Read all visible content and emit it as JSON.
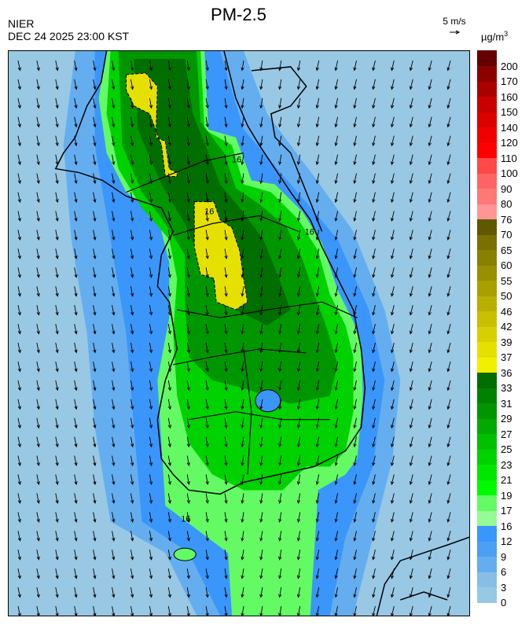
{
  "header": {
    "title": "PM-2.5",
    "agency": "NIER",
    "datetime": "DEC 24 2025 23:00 KST",
    "wind_reference": "5 m/s",
    "unit_base": "µg/m",
    "unit_exp": "3"
  },
  "colorbar": {
    "labels": [
      "0",
      "3",
      "6",
      "9",
      "12",
      "16",
      "17",
      "19",
      "21",
      "23",
      "25",
      "27",
      "29",
      "31",
      "33",
      "36",
      "37",
      "39",
      "42",
      "46",
      "50",
      "55",
      "60",
      "65",
      "70",
      "76",
      "80",
      "90",
      "100",
      "110",
      "120",
      "140",
      "150",
      "160",
      "170",
      "200"
    ],
    "colors": [
      "#98c8e4",
      "#88bee6",
      "#64aef0",
      "#4aa0f2",
      "#3a96fa",
      "#96fa96",
      "#64fa64",
      "#00fa00",
      "#00e600",
      "#00d200",
      "#00c000",
      "#00aa00",
      "#009600",
      "#008200",
      "#006e00",
      "#f0f000",
      "#e6e000",
      "#d7d000",
      "#c8c000",
      "#b8b000",
      "#a8a000",
      "#989000",
      "#888000",
      "#787000",
      "#605800",
      "#ff9696",
      "#ff7878",
      "#ff6464",
      "#ff4848",
      "#ff0000",
      "#f00000",
      "#dc0000",
      "#c80000",
      "#aa0000",
      "#8c0000",
      "#640000"
    ]
  },
  "map": {
    "field_colors": {
      "background": "#98c8e4",
      "low": "#64aef0",
      "mid": "#3a96fa",
      "green_light": "#64fa64",
      "green": "#00d200",
      "green_dark": "#009600",
      "green_core": "#006e00",
      "yellow": "#e6e000"
    },
    "contour_labels": [
      "16",
      "16",
      "16",
      "16"
    ]
  }
}
